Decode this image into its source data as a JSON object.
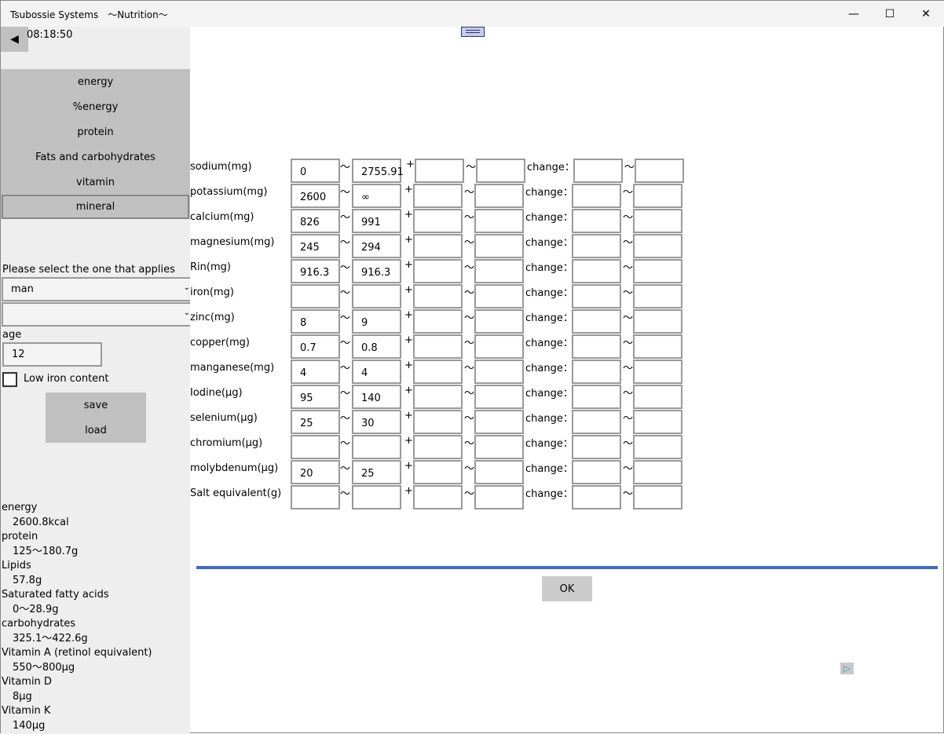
{
  "window": {
    "title": "Tsubossie Systems　〜Nutrition〜",
    "minimize": "—",
    "maximize": "☐",
    "close": "✕"
  },
  "sidebar": {
    "back_icon": "◀",
    "clock": "08:18:50",
    "nav": [
      "energy",
      "%energy",
      "protein",
      "Fats and carbohydrates",
      "vitamin",
      "mineral"
    ],
    "selected_nav": "mineral",
    "select_label": "Please select the one that applies",
    "combo1": "man",
    "combo2": "",
    "combo_arrow": "⌄",
    "age_label": "age",
    "age": "12",
    "low_iron_label": "Low iron content",
    "low_iron_checked": false,
    "save": "save",
    "load": "load",
    "summary": [
      {
        "name": "energy",
        "value": "2600.8kcal"
      },
      {
        "name": "protein",
        "value": "125〜180.7g"
      },
      {
        "name": "Lipids",
        "value": "57.8g"
      },
      {
        "name": "Saturated fatty acids",
        "value": "0〜28.9g"
      },
      {
        "name": "carbohydrates",
        "value": "325.1〜422.6g"
      },
      {
        "name": "Vitamin A (retinol equivalent)",
        "value": "550〜800µg"
      },
      {
        "name": "Vitamin D",
        "value": "8µg"
      },
      {
        "name": "Vitamin K",
        "value": "140µg"
      }
    ]
  },
  "main": {
    "tilde": "〜",
    "plus": "+",
    "change": "change：",
    "ok": "OK",
    "rows": [
      {
        "label": "sodium(mg)",
        "min": "0",
        "max": "2755.91"
      },
      {
        "label": "potassium(mg)",
        "min": "2600",
        "max": "∞"
      },
      {
        "label": "calcium(mg)",
        "min": "826",
        "max": "991"
      },
      {
        "label": "magnesium(mg)",
        "min": "245",
        "max": "294"
      },
      {
        "label": "Rin(mg)",
        "min": "916.3",
        "max": "916.3"
      },
      {
        "label": "iron(mg)",
        "min": "",
        "max": ""
      },
      {
        "label": "zinc(mg)",
        "min": "8",
        "max": "9"
      },
      {
        "label": "copper(mg)",
        "min": "0.7",
        "max": "0.8"
      },
      {
        "label": "manganese(mg)",
        "min": "4",
        "max": "4"
      },
      {
        "label": "Iodine(µg)",
        "min": "95",
        "max": "140"
      },
      {
        "label": "selenium(µg)",
        "min": "25",
        "max": "30"
      },
      {
        "label": "chromium(µg)",
        "min": "",
        "max": ""
      },
      {
        "label": "molybdenum(µg)",
        "min": "20",
        "max": "25"
      },
      {
        "label": "Salt equivalent(g)",
        "min": "",
        "max": ""
      }
    ]
  },
  "ad_icon": "▷"
}
